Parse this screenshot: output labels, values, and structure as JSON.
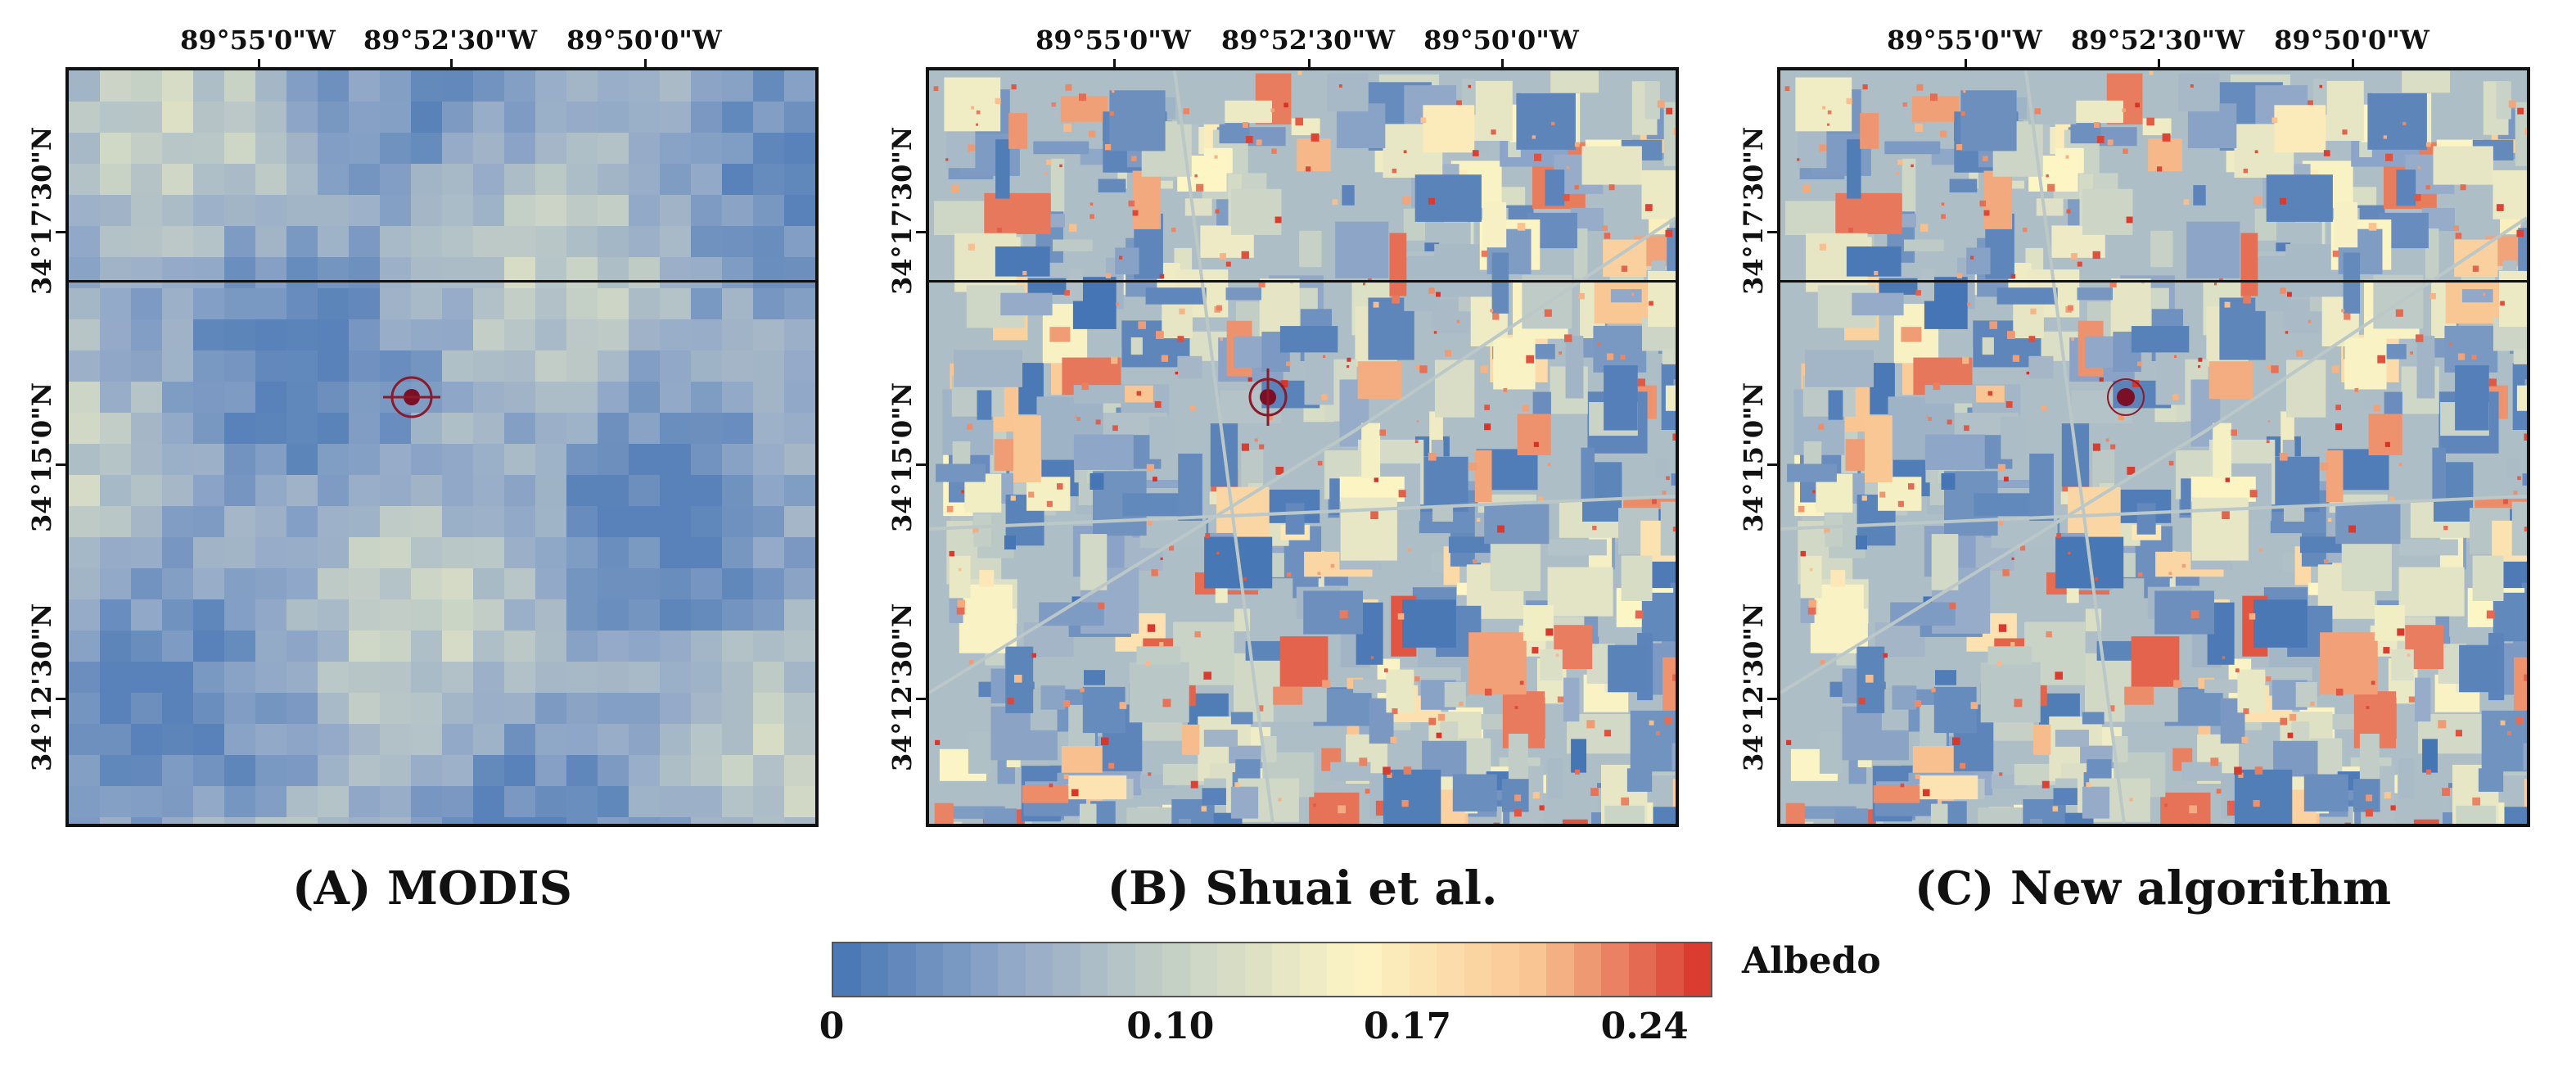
{
  "panels": [
    {
      "id": "a",
      "caption": "(A) MODIS",
      "style": "coarse"
    },
    {
      "id": "b",
      "caption": "(B) Shuai et al.",
      "style": "fine"
    },
    {
      "id": "c",
      "caption": "(C) New algorithm",
      "style": "fine"
    }
  ],
  "longitude_ticks": [
    "89°55'0\"W",
    "89°52'30\"W",
    "89°50'0\"W"
  ],
  "latitude_ticks": [
    "34°17'30\"N",
    "34°15'0\"N",
    "34°12'30\"N"
  ],
  "colorbar": {
    "title": "Albedo",
    "min": 0,
    "max": 0.26,
    "tick_labels": [
      "0",
      "0.10",
      "0.17",
      "0.24"
    ],
    "tick_values": [
      0,
      0.1,
      0.17,
      0.24
    ],
    "segments": 32,
    "colors": [
      "#4575b4",
      "#91a8c8",
      "#c9d3c6",
      "#fdf5c4",
      "#f9c592",
      "#d73027"
    ]
  },
  "site_marker": {
    "name": "site-marker-icon"
  }
}
